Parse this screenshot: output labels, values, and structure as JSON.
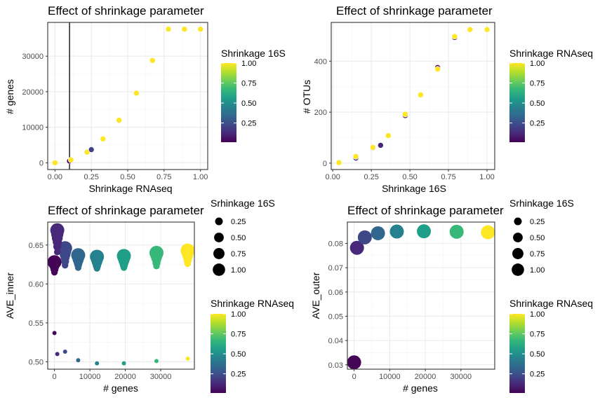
{
  "palette": {
    "viridis": [
      "#440154",
      "#482878",
      "#3e4989",
      "#31688e",
      "#26828e",
      "#1f9e89",
      "#35b779",
      "#6ece58",
      "#b5de2b",
      "#fde725"
    ],
    "panel_border": "#333333",
    "grid_major": "#ebebeb",
    "grid_minor": "#f5f5f5",
    "point_outline": "#ffffff"
  },
  "chart_data": [
    {
      "type": "scatter",
      "title": "Effect of shrinkage parameter",
      "xlabel": "Shrinkage RNAseq",
      "ylabel": "# genes",
      "xlim": [
        -0.05,
        1.05
      ],
      "ylim": [
        -1900,
        39500
      ],
      "xticks": [
        0,
        0.25,
        0.5,
        0.75,
        1
      ],
      "xtick_labels": [
        "0.00",
        "0.25",
        "0.50",
        "0.75",
        "1.00"
      ],
      "yticks": [
        0,
        10000,
        20000,
        30000
      ],
      "ytick_labels": [
        "0",
        "10000",
        "20000",
        "30000"
      ],
      "vline": {
        "x": 0.1
      },
      "color_legend": {
        "title": "Shrinkage 16S",
        "limits": [
          0.01,
          1
        ],
        "ticks": [
          0.25,
          0.5,
          0.75,
          1
        ],
        "tick_labels": [
          "0.25",
          "0.50",
          "0.75",
          "1.00"
        ]
      },
      "points": [
        {
          "x": 0.0,
          "y": 0,
          "c": 1.0
        },
        {
          "x": 0.1,
          "y": 500,
          "c": 0.01
        },
        {
          "x": 0.11,
          "y": 800,
          "c": 1.0
        },
        {
          "x": 0.22,
          "y": 3000,
          "c": 1.0
        },
        {
          "x": 0.25,
          "y": 3700,
          "c": 0.2
        },
        {
          "x": 0.33,
          "y": 6700,
          "c": 1.0
        },
        {
          "x": 0.44,
          "y": 11900,
          "c": 0.01
        },
        {
          "x": 0.44,
          "y": 12000,
          "c": 1.0
        },
        {
          "x": 0.56,
          "y": 19600,
          "c": 1.0
        },
        {
          "x": 0.67,
          "y": 28800,
          "c": 1.0
        },
        {
          "x": 0.78,
          "y": 37600,
          "c": 1.0
        },
        {
          "x": 0.89,
          "y": 37600,
          "c": 1.0
        },
        {
          "x": 1.0,
          "y": 37600,
          "c": 1.0
        }
      ]
    },
    {
      "type": "scatter",
      "title": "Effect of shrinkage parameter",
      "xlabel": "Shrinkage 16S",
      "ylabel": "# OTUs",
      "xlim": [
        -0.01,
        1.05
      ],
      "ylim": [
        -25,
        552
      ],
      "xticks": [
        0,
        0.25,
        0.5,
        0.75,
        1
      ],
      "xtick_labels": [
        "0.00",
        "0.25",
        "0.50",
        "0.75",
        "1.00"
      ],
      "yticks": [
        0,
        200,
        400
      ],
      "ytick_labels": [
        "0",
        "200",
        "400"
      ],
      "color_legend": {
        "title": "Shrinkage RNAseq",
        "limits": [
          0.01,
          1
        ],
        "ticks": [
          0.25,
          0.5,
          0.75,
          1
        ],
        "tick_labels": [
          "0.25",
          "0.50",
          "0.75",
          "1.00"
        ]
      },
      "points": [
        {
          "x": 0.04,
          "y": 2,
          "c": 1.0
        },
        {
          "x": 0.15,
          "y": 20,
          "c": 0.15
        },
        {
          "x": 0.15,
          "y": 26,
          "c": 1.0
        },
        {
          "x": 0.26,
          "y": 60,
          "c": 0.05
        },
        {
          "x": 0.26,
          "y": 62,
          "c": 1.0
        },
        {
          "x": 0.31,
          "y": 70,
          "c": 0.1
        },
        {
          "x": 0.36,
          "y": 108,
          "c": 1.0
        },
        {
          "x": 0.47,
          "y": 187,
          "c": 0.01
        },
        {
          "x": 0.47,
          "y": 192,
          "c": 1.0
        },
        {
          "x": 0.57,
          "y": 268,
          "c": 1.0
        },
        {
          "x": 0.68,
          "y": 375,
          "c": 0.01
        },
        {
          "x": 0.68,
          "y": 369,
          "c": 1.0
        },
        {
          "x": 0.79,
          "y": 493,
          "c": 0.01
        },
        {
          "x": 0.79,
          "y": 497,
          "c": 1.0
        },
        {
          "x": 0.89,
          "y": 524,
          "c": 1.0
        },
        {
          "x": 1.0,
          "y": 524,
          "c": 1.0
        }
      ]
    },
    {
      "type": "scatter",
      "title": "Effect of shrinkage parameter",
      "xlabel": "# genes",
      "ylabel": "AVE_inner",
      "xlim": [
        -1900,
        39500
      ],
      "ylim": [
        0.4905,
        0.6795
      ],
      "xticks": [
        0,
        10000,
        20000,
        30000
      ],
      "xtick_labels": [
        "0",
        "10000",
        "20000",
        "30000"
      ],
      "yticks": [
        0.5,
        0.55,
        0.6,
        0.65
      ],
      "ytick_labels": [
        "0.50",
        "0.55",
        "0.60",
        "0.65"
      ],
      "size_legend": {
        "title": "Srhinkage 16S",
        "values": [
          0.25,
          0.5,
          0.75,
          1
        ],
        "labels": [
          "0.25",
          "0.50",
          "0.75",
          "1.00"
        ]
      },
      "color_legend": {
        "title": "Shrinkage RNAseq",
        "limits": [
          0.01,
          1
        ],
        "ticks": [
          0.25,
          0.5,
          0.75,
          1
        ],
        "tick_labels": [
          "0.25",
          "0.50",
          "0.75",
          "1.00"
        ]
      },
      "points": [
        {
          "x": 0,
          "y": 0.537,
          "c": 0.01,
          "s": 0.01
        },
        {
          "x": 0,
          "y": 0.615,
          "c": 0.01,
          "s": 0.1
        },
        {
          "x": 0,
          "y": 0.619,
          "c": 0.01,
          "s": 0.2
        },
        {
          "x": 0,
          "y": 0.622,
          "c": 0.01,
          "s": 0.3
        },
        {
          "x": 0,
          "y": 0.625,
          "c": 0.01,
          "s": 0.5
        },
        {
          "x": 0,
          "y": 0.627,
          "c": 0.01,
          "s": 0.7
        },
        {
          "x": 0,
          "y": 0.628,
          "c": 0.01,
          "s": 1.0
        },
        {
          "x": 800,
          "y": 0.51,
          "c": 0.11,
          "s": 0.01
        },
        {
          "x": 800,
          "y": 0.641,
          "c": 0.11,
          "s": 0.1
        },
        {
          "x": 800,
          "y": 0.648,
          "c": 0.11,
          "s": 0.2
        },
        {
          "x": 800,
          "y": 0.654,
          "c": 0.11,
          "s": 0.3
        },
        {
          "x": 800,
          "y": 0.659,
          "c": 0.11,
          "s": 0.5
        },
        {
          "x": 800,
          "y": 0.664,
          "c": 0.11,
          "s": 0.7
        },
        {
          "x": 800,
          "y": 0.669,
          "c": 0.11,
          "s": 1.0
        },
        {
          "x": 3000,
          "y": 0.513,
          "c": 0.22,
          "s": 0.01
        },
        {
          "x": 3000,
          "y": 0.624,
          "c": 0.22,
          "s": 0.1
        },
        {
          "x": 3000,
          "y": 0.629,
          "c": 0.22,
          "s": 0.2
        },
        {
          "x": 3000,
          "y": 0.634,
          "c": 0.22,
          "s": 0.3
        },
        {
          "x": 3000,
          "y": 0.638,
          "c": 0.22,
          "s": 0.5
        },
        {
          "x": 3000,
          "y": 0.642,
          "c": 0.22,
          "s": 0.7
        },
        {
          "x": 3000,
          "y": 0.646,
          "c": 0.22,
          "s": 1.0
        },
        {
          "x": 6700,
          "y": 0.502,
          "c": 0.33,
          "s": 0.01
        },
        {
          "x": 6700,
          "y": 0.621,
          "c": 0.33,
          "s": 0.1
        },
        {
          "x": 6700,
          "y": 0.625,
          "c": 0.33,
          "s": 0.2
        },
        {
          "x": 6700,
          "y": 0.628,
          "c": 0.33,
          "s": 0.3
        },
        {
          "x": 6700,
          "y": 0.631,
          "c": 0.33,
          "s": 0.5
        },
        {
          "x": 6700,
          "y": 0.634,
          "c": 0.33,
          "s": 0.7
        },
        {
          "x": 6700,
          "y": 0.637,
          "c": 0.33,
          "s": 1.0
        },
        {
          "x": 12000,
          "y": 0.498,
          "c": 0.44,
          "s": 0.01
        },
        {
          "x": 12000,
          "y": 0.62,
          "c": 0.44,
          "s": 0.1
        },
        {
          "x": 12000,
          "y": 0.623,
          "c": 0.44,
          "s": 0.2
        },
        {
          "x": 12000,
          "y": 0.626,
          "c": 0.44,
          "s": 0.3
        },
        {
          "x": 12000,
          "y": 0.629,
          "c": 0.44,
          "s": 0.5
        },
        {
          "x": 12000,
          "y": 0.632,
          "c": 0.44,
          "s": 0.7
        },
        {
          "x": 12000,
          "y": 0.635,
          "c": 0.44,
          "s": 1.0
        },
        {
          "x": 19600,
          "y": 0.498,
          "c": 0.56,
          "s": 0.01
        },
        {
          "x": 19600,
          "y": 0.621,
          "c": 0.56,
          "s": 0.1
        },
        {
          "x": 19600,
          "y": 0.624,
          "c": 0.56,
          "s": 0.2
        },
        {
          "x": 19600,
          "y": 0.627,
          "c": 0.56,
          "s": 0.3
        },
        {
          "x": 19600,
          "y": 0.63,
          "c": 0.56,
          "s": 0.5
        },
        {
          "x": 19600,
          "y": 0.633,
          "c": 0.56,
          "s": 0.7
        },
        {
          "x": 19600,
          "y": 0.636,
          "c": 0.56,
          "s": 1.0
        },
        {
          "x": 28800,
          "y": 0.501,
          "c": 0.67,
          "s": 0.01
        },
        {
          "x": 28800,
          "y": 0.623,
          "c": 0.67,
          "s": 0.1
        },
        {
          "x": 28800,
          "y": 0.627,
          "c": 0.67,
          "s": 0.2
        },
        {
          "x": 28800,
          "y": 0.631,
          "c": 0.67,
          "s": 0.3
        },
        {
          "x": 28800,
          "y": 0.634,
          "c": 0.67,
          "s": 0.5
        },
        {
          "x": 28800,
          "y": 0.637,
          "c": 0.67,
          "s": 0.7
        },
        {
          "x": 28800,
          "y": 0.64,
          "c": 0.67,
          "s": 1.0
        },
        {
          "x": 37600,
          "y": 0.504,
          "c": 1.0,
          "s": 0.01
        },
        {
          "x": 37600,
          "y": 0.626,
          "c": 1.0,
          "s": 0.1
        },
        {
          "x": 37600,
          "y": 0.63,
          "c": 1.0,
          "s": 0.2
        },
        {
          "x": 37600,
          "y": 0.634,
          "c": 1.0,
          "s": 0.3
        },
        {
          "x": 37600,
          "y": 0.637,
          "c": 1.0,
          "s": 0.5
        },
        {
          "x": 37600,
          "y": 0.64,
          "c": 1.0,
          "s": 0.7
        },
        {
          "x": 37600,
          "y": 0.643,
          "c": 1.0,
          "s": 1.0
        }
      ]
    },
    {
      "type": "scatter",
      "title": "Effect of shrinkage parameter",
      "xlabel": "# genes",
      "ylabel": "AVE_outer",
      "xlim": [
        -1900,
        39500
      ],
      "ylim": [
        0.0282,
        0.0888
      ],
      "xticks": [
        0,
        10000,
        20000,
        30000
      ],
      "xtick_labels": [
        "0",
        "10000",
        "20000",
        "30000"
      ],
      "yticks": [
        0.03,
        0.04,
        0.05,
        0.06,
        0.07,
        0.08
      ],
      "ytick_labels": [
        "0.03",
        "0.04",
        "0.05",
        "0.06",
        "0.07",
        "0.08"
      ],
      "size_legend": {
        "title": "Srhinkage 16S",
        "values": [
          0.25,
          0.5,
          0.75,
          1
        ],
        "labels": [
          "0.25",
          "0.50",
          "0.75",
          "1.00"
        ]
      },
      "color_legend": {
        "title": "Shrinkage RNAseq",
        "limits": [
          0.01,
          1
        ],
        "ticks": [
          0.25,
          0.5,
          0.75,
          1
        ],
        "tick_labels": [
          "0.25",
          "0.50",
          "0.75",
          "1.00"
        ]
      },
      "points": [
        {
          "x": 0,
          "y": 0.031,
          "c": 0.01,
          "s": 1.0
        },
        {
          "x": 800,
          "y": 0.0782,
          "c": 0.11,
          "s": 1.0
        },
        {
          "x": 3000,
          "y": 0.0825,
          "c": 0.22,
          "s": 1.0
        },
        {
          "x": 6700,
          "y": 0.0842,
          "c": 0.33,
          "s": 1.0
        },
        {
          "x": 12000,
          "y": 0.0849,
          "c": 0.44,
          "s": 1.0
        },
        {
          "x": 19600,
          "y": 0.085,
          "c": 0.56,
          "s": 1.0
        },
        {
          "x": 28800,
          "y": 0.0848,
          "c": 0.67,
          "s": 1.0
        },
        {
          "x": 37600,
          "y": 0.0846,
          "c": 1.0,
          "s": 1.0
        }
      ]
    }
  ]
}
